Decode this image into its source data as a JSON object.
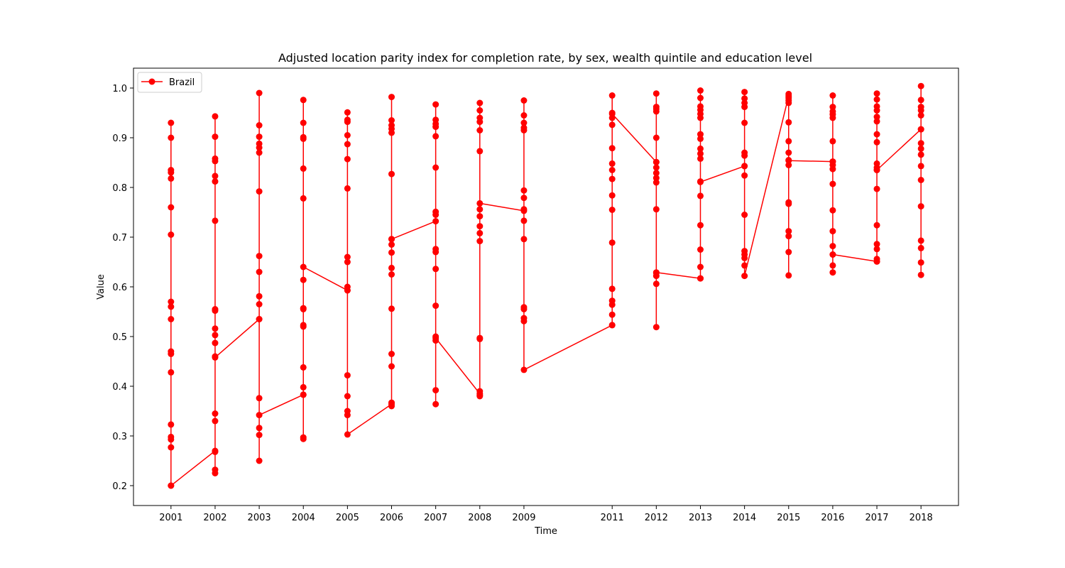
{
  "chart_data": {
    "type": "line",
    "title": "Adjusted location parity index for completion rate, by sex, wealth quintile and education level",
    "xlabel": "Time",
    "ylabel": "Value",
    "xlim": [
      2000.15,
      2018.85
    ],
    "ylim": [
      0.16,
      1.04
    ],
    "x_ticks": [
      2001,
      2002,
      2003,
      2004,
      2005,
      2006,
      2007,
      2008,
      2009,
      2011,
      2012,
      2013,
      2014,
      2015,
      2016,
      2017,
      2018
    ],
    "y_ticks": [
      0.2,
      0.3,
      0.4,
      0.5,
      0.6,
      0.7,
      0.8,
      0.9,
      1.0
    ],
    "y_tick_labels": [
      "0.2",
      "0.3",
      "0.4",
      "0.5",
      "0.6",
      "0.7",
      "0.8",
      "0.9",
      "1.0"
    ],
    "grid": false,
    "legend_position": "upper left",
    "series": [
      {
        "name": "Brazil",
        "color": "#ff0000",
        "marker": "circle",
        "points": [
          [
            2001,
            0.93
          ],
          [
            2001,
            0.2
          ],
          [
            2001,
            0.9
          ],
          [
            2001,
            0.835
          ],
          [
            2001,
            0.83
          ],
          [
            2001,
            0.818
          ],
          [
            2001,
            0.76
          ],
          [
            2001,
            0.705
          ],
          [
            2001,
            0.57
          ],
          [
            2001,
            0.56
          ],
          [
            2001,
            0.535
          ],
          [
            2001,
            0.47
          ],
          [
            2001,
            0.465
          ],
          [
            2001,
            0.428
          ],
          [
            2001,
            0.323
          ],
          [
            2001,
            0.298
          ],
          [
            2001,
            0.293
          ],
          [
            2001,
            0.277
          ],
          [
            2001,
            0.2
          ],
          [
            2002,
            0.27
          ],
          [
            2002,
            0.943
          ],
          [
            2002,
            0.902
          ],
          [
            2002,
            0.858
          ],
          [
            2002,
            0.853
          ],
          [
            2002,
            0.823
          ],
          [
            2002,
            0.812
          ],
          [
            2002,
            0.733
          ],
          [
            2002,
            0.555
          ],
          [
            2002,
            0.552
          ],
          [
            2002,
            0.516
          ],
          [
            2002,
            0.503
          ],
          [
            2002,
            0.487
          ],
          [
            2002,
            0.46
          ],
          [
            2002,
            0.345
          ],
          [
            2002,
            0.33
          ],
          [
            2002,
            0.268
          ],
          [
            2002,
            0.232
          ],
          [
            2002,
            0.225
          ],
          [
            2002,
            0.458
          ],
          [
            2003,
            0.535
          ],
          [
            2003,
            0.99
          ],
          [
            2003,
            0.925
          ],
          [
            2003,
            0.902
          ],
          [
            2003,
            0.888
          ],
          [
            2003,
            0.88
          ],
          [
            2003,
            0.87
          ],
          [
            2003,
            0.792
          ],
          [
            2003,
            0.662
          ],
          [
            2003,
            0.63
          ],
          [
            2003,
            0.581
          ],
          [
            2003,
            0.565
          ],
          [
            2003,
            0.535
          ],
          [
            2003,
            0.376
          ],
          [
            2003,
            0.316
          ],
          [
            2003,
            0.302
          ],
          [
            2003,
            0.25
          ],
          [
            2003,
            0.342
          ],
          [
            2004,
            0.383
          ],
          [
            2004,
            0.976
          ],
          [
            2004,
            0.93
          ],
          [
            2004,
            0.901
          ],
          [
            2004,
            0.898
          ],
          [
            2004,
            0.838
          ],
          [
            2004,
            0.778
          ],
          [
            2004,
            0.614
          ],
          [
            2004,
            0.557
          ],
          [
            2004,
            0.555
          ],
          [
            2004,
            0.523
          ],
          [
            2004,
            0.52
          ],
          [
            2004,
            0.438
          ],
          [
            2004,
            0.398
          ],
          [
            2004,
            0.383
          ],
          [
            2004,
            0.297
          ],
          [
            2004,
            0.294
          ],
          [
            2004,
            0.64
          ],
          [
            2005,
            0.593
          ],
          [
            2005,
            0.951
          ],
          [
            2005,
            0.936
          ],
          [
            2005,
            0.932
          ],
          [
            2005,
            0.905
          ],
          [
            2005,
            0.887
          ],
          [
            2005,
            0.857
          ],
          [
            2005,
            0.798
          ],
          [
            2005,
            0.66
          ],
          [
            2005,
            0.65
          ],
          [
            2005,
            0.6
          ],
          [
            2005,
            0.593
          ],
          [
            2005,
            0.422
          ],
          [
            2005,
            0.38
          ],
          [
            2005,
            0.35
          ],
          [
            2005,
            0.342
          ],
          [
            2005,
            0.303
          ],
          [
            2006,
            0.364
          ],
          [
            2006,
            0.982
          ],
          [
            2006,
            0.935
          ],
          [
            2006,
            0.925
          ],
          [
            2006,
            0.918
          ],
          [
            2006,
            0.91
          ],
          [
            2006,
            0.827
          ],
          [
            2006,
            0.696
          ],
          [
            2006,
            0.685
          ],
          [
            2006,
            0.669
          ],
          [
            2006,
            0.638
          ],
          [
            2006,
            0.625
          ],
          [
            2006,
            0.556
          ],
          [
            2006,
            0.465
          ],
          [
            2006,
            0.44
          ],
          [
            2006,
            0.367
          ],
          [
            2006,
            0.36
          ],
          [
            2006,
            0.696
          ],
          [
            2007,
            0.732
          ],
          [
            2007,
            0.967
          ],
          [
            2007,
            0.936
          ],
          [
            2007,
            0.928
          ],
          [
            2007,
            0.922
          ],
          [
            2007,
            0.903
          ],
          [
            2007,
            0.84
          ],
          [
            2007,
            0.751
          ],
          [
            2007,
            0.745
          ],
          [
            2007,
            0.676
          ],
          [
            2007,
            0.67
          ],
          [
            2007,
            0.636
          ],
          [
            2007,
            0.562
          ],
          [
            2007,
            0.5
          ],
          [
            2007,
            0.492
          ],
          [
            2007,
            0.392
          ],
          [
            2007,
            0.364
          ],
          [
            2007,
            0.497
          ],
          [
            2008,
            0.385
          ],
          [
            2008,
            0.97
          ],
          [
            2008,
            0.955
          ],
          [
            2008,
            0.94
          ],
          [
            2008,
            0.932
          ],
          [
            2008,
            0.915
          ],
          [
            2008,
            0.873
          ],
          [
            2008,
            0.756
          ],
          [
            2008,
            0.742
          ],
          [
            2008,
            0.722
          ],
          [
            2008,
            0.708
          ],
          [
            2008,
            0.692
          ],
          [
            2008,
            0.497
          ],
          [
            2008,
            0.495
          ],
          [
            2008,
            0.39
          ],
          [
            2008,
            0.382
          ],
          [
            2008,
            0.38
          ],
          [
            2008,
            0.768
          ],
          [
            2009,
            0.753
          ],
          [
            2009,
            0.975
          ],
          [
            2009,
            0.945
          ],
          [
            2009,
            0.93
          ],
          [
            2009,
            0.92
          ],
          [
            2009,
            0.915
          ],
          [
            2009,
            0.794
          ],
          [
            2009,
            0.779
          ],
          [
            2009,
            0.756
          ],
          [
            2009,
            0.733
          ],
          [
            2009,
            0.696
          ],
          [
            2009,
            0.559
          ],
          [
            2009,
            0.555
          ],
          [
            2009,
            0.537
          ],
          [
            2009,
            0.531
          ],
          [
            2009,
            0.433
          ],
          [
            2011,
            0.523
          ],
          [
            2011,
            0.985
          ],
          [
            2011,
            0.95
          ],
          [
            2011,
            0.94
          ],
          [
            2011,
            0.926
          ],
          [
            2011,
            0.879
          ],
          [
            2011,
            0.848
          ],
          [
            2011,
            0.835
          ],
          [
            2011,
            0.817
          ],
          [
            2011,
            0.784
          ],
          [
            2011,
            0.755
          ],
          [
            2011,
            0.689
          ],
          [
            2011,
            0.596
          ],
          [
            2011,
            0.572
          ],
          [
            2011,
            0.564
          ],
          [
            2011,
            0.544
          ],
          [
            2011,
            0.523
          ],
          [
            2011,
            0.948
          ],
          [
            2012,
            0.851
          ],
          [
            2012,
            0.989
          ],
          [
            2012,
            0.962
          ],
          [
            2012,
            0.958
          ],
          [
            2012,
            0.953
          ],
          [
            2012,
            0.9
          ],
          [
            2012,
            0.851
          ],
          [
            2012,
            0.84
          ],
          [
            2012,
            0.829
          ],
          [
            2012,
            0.819
          ],
          [
            2012,
            0.81
          ],
          [
            2012,
            0.756
          ],
          [
            2012,
            0.628
          ],
          [
            2012,
            0.622
          ],
          [
            2012,
            0.606
          ],
          [
            2012,
            0.519
          ],
          [
            2012,
            0.629
          ],
          [
            2013,
            0.617
          ],
          [
            2013,
            0.995
          ],
          [
            2013,
            0.98
          ],
          [
            2013,
            0.963
          ],
          [
            2013,
            0.956
          ],
          [
            2013,
            0.948
          ],
          [
            2013,
            0.94
          ],
          [
            2013,
            0.907
          ],
          [
            2013,
            0.898
          ],
          [
            2013,
            0.878
          ],
          [
            2013,
            0.868
          ],
          [
            2013,
            0.858
          ],
          [
            2013,
            0.812
          ],
          [
            2013,
            0.783
          ],
          [
            2013,
            0.724
          ],
          [
            2013,
            0.675
          ],
          [
            2013,
            0.64
          ],
          [
            2013,
            0.617
          ],
          [
            2013,
            0.811
          ],
          [
            2014,
            0.843
          ],
          [
            2014,
            0.992
          ],
          [
            2014,
            0.979
          ],
          [
            2014,
            0.97
          ],
          [
            2014,
            0.962
          ],
          [
            2014,
            0.93
          ],
          [
            2014,
            0.87
          ],
          [
            2014,
            0.864
          ],
          [
            2014,
            0.843
          ],
          [
            2014,
            0.824
          ],
          [
            2014,
            0.745
          ],
          [
            2014,
            0.672
          ],
          [
            2014,
            0.665
          ],
          [
            2014,
            0.658
          ],
          [
            2014,
            0.643
          ],
          [
            2014,
            0.622
          ],
          [
            2015,
            0.984
          ],
          [
            2015,
            0.988
          ],
          [
            2015,
            0.98
          ],
          [
            2015,
            0.975
          ],
          [
            2015,
            0.97
          ],
          [
            2015,
            0.931
          ],
          [
            2015,
            0.893
          ],
          [
            2015,
            0.87
          ],
          [
            2015,
            0.855
          ],
          [
            2015,
            0.845
          ],
          [
            2015,
            0.77
          ],
          [
            2015,
            0.767
          ],
          [
            2015,
            0.712
          ],
          [
            2015,
            0.702
          ],
          [
            2015,
            0.67
          ],
          [
            2015,
            0.623
          ],
          [
            2015,
            0.854
          ],
          [
            2016,
            0.852
          ],
          [
            2016,
            0.985
          ],
          [
            2016,
            0.962
          ],
          [
            2016,
            0.953
          ],
          [
            2016,
            0.947
          ],
          [
            2016,
            0.94
          ],
          [
            2016,
            0.893
          ],
          [
            2016,
            0.852
          ],
          [
            2016,
            0.845
          ],
          [
            2016,
            0.837
          ],
          [
            2016,
            0.807
          ],
          [
            2016,
            0.754
          ],
          [
            2016,
            0.712
          ],
          [
            2016,
            0.682
          ],
          [
            2016,
            0.665
          ],
          [
            2016,
            0.643
          ],
          [
            2016,
            0.629
          ],
          [
            2016,
            0.665
          ],
          [
            2017,
            0.651
          ],
          [
            2017,
            0.989
          ],
          [
            2017,
            0.977
          ],
          [
            2017,
            0.963
          ],
          [
            2017,
            0.955
          ],
          [
            2017,
            0.942
          ],
          [
            2017,
            0.933
          ],
          [
            2017,
            0.907
          ],
          [
            2017,
            0.891
          ],
          [
            2017,
            0.848
          ],
          [
            2017,
            0.84
          ],
          [
            2017,
            0.835
          ],
          [
            2017,
            0.797
          ],
          [
            2017,
            0.724
          ],
          [
            2017,
            0.686
          ],
          [
            2017,
            0.676
          ],
          [
            2017,
            0.656
          ],
          [
            2017,
            0.651
          ],
          [
            2017,
            0.835
          ],
          [
            2018,
            0.917
          ],
          [
            2018,
            1.004
          ],
          [
            2018,
            0.976
          ],
          [
            2018,
            0.962
          ],
          [
            2018,
            0.955
          ],
          [
            2018,
            0.945
          ],
          [
            2018,
            0.917
          ],
          [
            2018,
            0.889
          ],
          [
            2018,
            0.878
          ],
          [
            2018,
            0.866
          ],
          [
            2018,
            0.843
          ],
          [
            2018,
            0.815
          ],
          [
            2018,
            0.762
          ],
          [
            2018,
            0.693
          ],
          [
            2018,
            0.678
          ],
          [
            2018,
            0.649
          ],
          [
            2018,
            0.624
          ]
        ]
      }
    ]
  }
}
